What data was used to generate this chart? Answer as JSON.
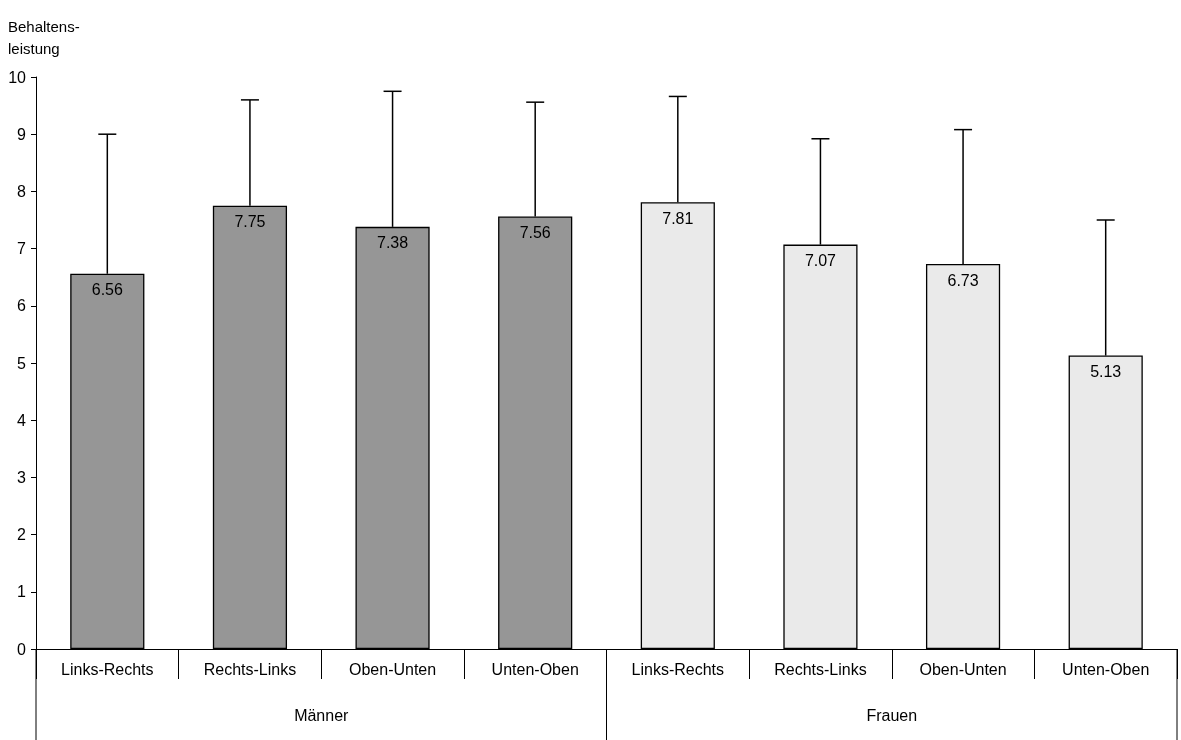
{
  "chart_data": {
    "type": "bar",
    "ylabel": "Behaltens-\nleistung",
    "categories": [
      "Links-Rechts",
      "Rechts-Links",
      "Oben-Unten",
      "Unten-Oben",
      "Links-Rechts",
      "Rechts-Links",
      "Oben-Unten",
      "Unten-Oben"
    ],
    "series": [
      {
        "color": "#969696",
        "values": [
          6.56,
          7.75,
          7.38,
          7.56,
          null,
          null,
          null,
          null
        ],
        "errors": [
          [
            6.56,
            9.0
          ],
          [
            7.75,
            9.6
          ],
          [
            7.38,
            9.75
          ],
          [
            7.56,
            9.56
          ],
          null,
          null,
          null,
          null
        ]
      },
      {
        "color": "#eaeaea",
        "values": [
          null,
          null,
          null,
          null,
          7.81,
          7.07,
          6.73,
          5.13
        ],
        "errors": [
          null,
          null,
          null,
          null,
          [
            7.81,
            9.66
          ],
          [
            7.07,
            8.92
          ],
          [
            6.73,
            9.08
          ],
          [
            5.13,
            7.5
          ]
        ]
      }
    ],
    "annotations": [
      "Männer",
      "Frauen"
    ],
    "ylim": [
      0,
      10
    ],
    "yticks": [
      0,
      1,
      2,
      3,
      4,
      5,
      6,
      7,
      8,
      9,
      10
    ],
    "grid": false,
    "data_labels": true
  }
}
